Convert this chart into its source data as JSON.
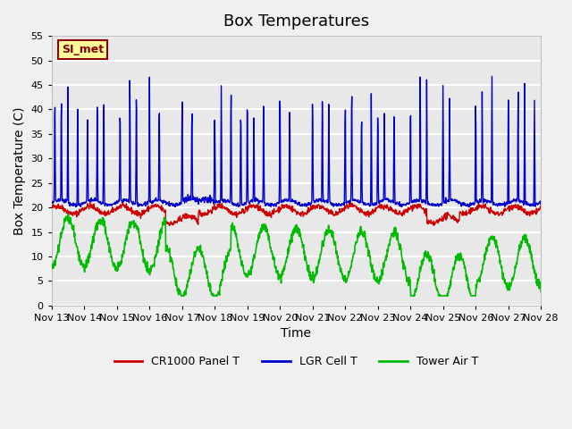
{
  "title": "Box Temperatures",
  "xlabel": "Time",
  "ylabel": "Box Temperature (C)",
  "ylim": [
    0,
    55
  ],
  "xlim": [
    0,
    15
  ],
  "x_tick_labels": [
    "Nov 13",
    "Nov 14",
    "Nov 15",
    "Nov 16",
    "Nov 17",
    "Nov 18",
    "Nov 19",
    "Nov 20",
    "Nov 21",
    "Nov 22",
    "Nov 23",
    "Nov 24",
    "Nov 25",
    "Nov 26",
    "Nov 27",
    "Nov 28"
  ],
  "x_tick_positions": [
    0,
    1,
    2,
    3,
    4,
    5,
    6,
    7,
    8,
    9,
    10,
    11,
    12,
    13,
    14,
    15
  ],
  "yticks": [
    0,
    5,
    10,
    15,
    20,
    25,
    30,
    35,
    40,
    45,
    50,
    55
  ],
  "watermark_text": "SI_met",
  "background_color": "#e8e8e8",
  "grid_color": "#ffffff",
  "legend_entries": [
    "CR1000 Panel T",
    "LGR Cell T",
    "Tower Air T"
  ],
  "legend_colors": [
    "#cc0000",
    "#0000cc",
    "#00cc00"
  ],
  "title_fontsize": 13,
  "axis_label_fontsize": 10,
  "red_base": 19.5,
  "blue_base": 21.0,
  "green_base": 13.0
}
